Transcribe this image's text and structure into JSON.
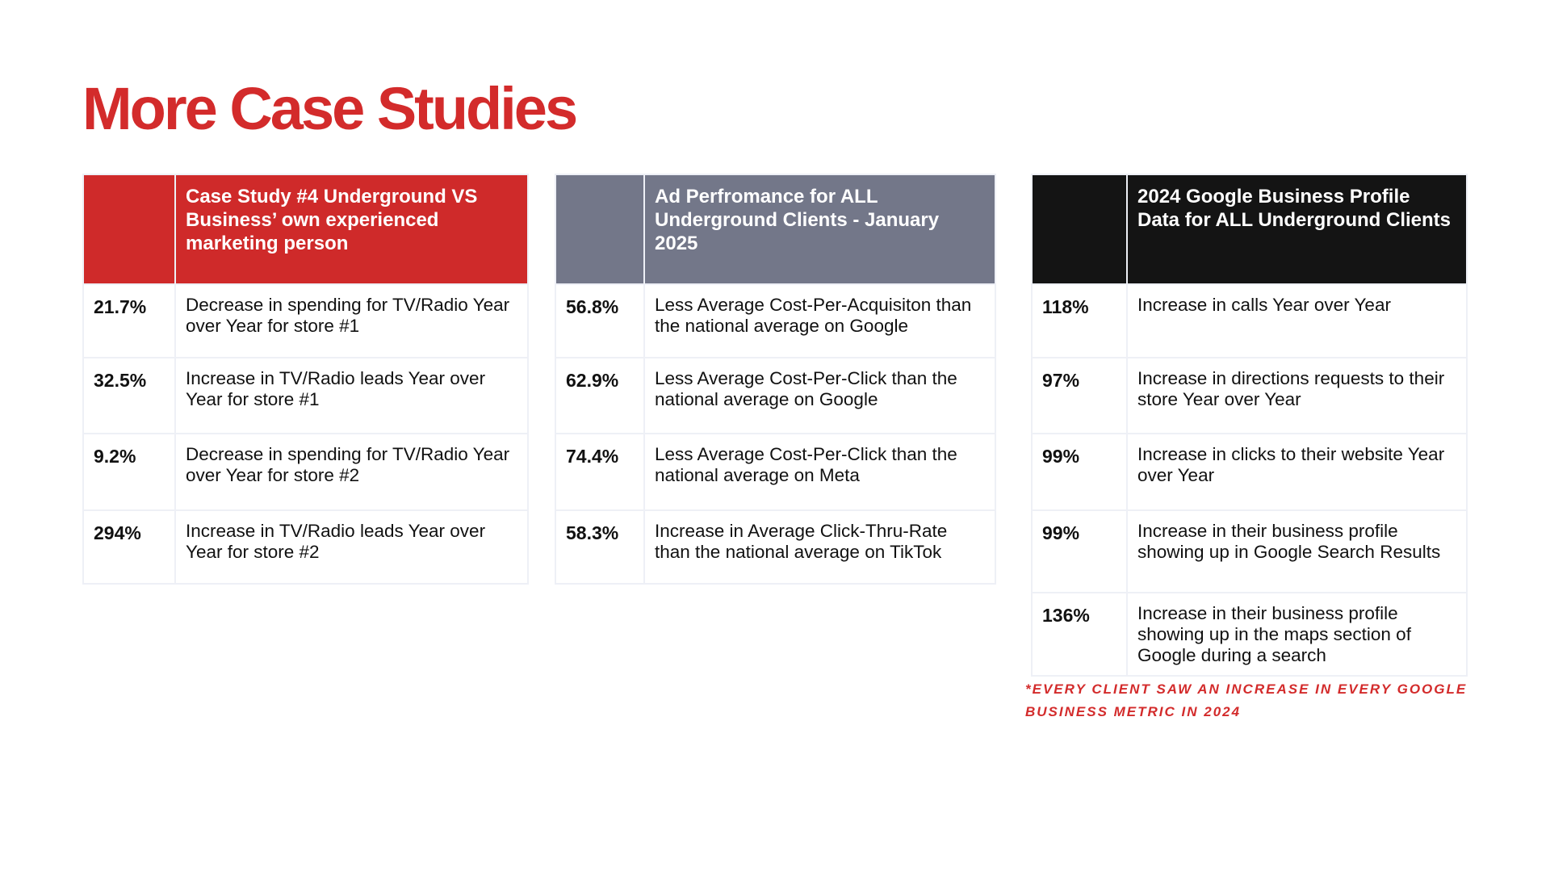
{
  "title": "More Case Studies",
  "tables": [
    {
      "header": "Case Study #4 Underground  VS Business’ own experienced marketing person",
      "row_heights": [
        91,
        94,
        95,
        91
      ],
      "rows": [
        {
          "value": "21.7%",
          "text": "Decrease in spending for TV/Radio Year over Year for store #1"
        },
        {
          "value": "32.5%",
          "text": "Increase in TV/Radio leads Year over Year for store #1"
        },
        {
          "value": "9.2%",
          "text": "Decrease in spending for TV/Radio Year over Year for store #2"
        },
        {
          "value": "294%",
          "text": "Increase in TV/Radio leads Year over Year for store #2"
        }
      ]
    },
    {
      "header": "Ad Perfromance for ALL Underground Clients - January 2025",
      "row_heights": [
        91,
        94,
        95,
        91
      ],
      "rows": [
        {
          "value": "56.8%",
          "text": "Less Average Cost-Per-Acquisiton than the national average on Google"
        },
        {
          "value": "62.9%",
          "text": "Less Average Cost-Per-Click than the national average on Google"
        },
        {
          "value": "74.4%",
          "text": "Less Average Cost-Per-Click than the national average on Meta"
        },
        {
          "value": "58.3%",
          "text": "Increase in Average Click-Thru-Rate than the national average on TikTok"
        }
      ]
    },
    {
      "header": "2024 Google Business Profile Data for ALL Underground Clients",
      "row_heights": [
        91,
        94,
        95,
        102,
        103
      ],
      "rows": [
        {
          "value": "118%",
          "text": "Increase in calls Year over Year"
        },
        {
          "value": "97%",
          "text": "Increase in directions requests to their store Year over Year"
        },
        {
          "value": "99%",
          "text": "Increase in clicks to their website Year over Year"
        },
        {
          "value": "99%",
          "text": "Increase in their business profile showing up in Google Search Results"
        },
        {
          "value": "136%",
          "text": "Increase in their business profile showing up in the maps section of Google during a search"
        }
      ]
    }
  ],
  "footnote": "*EVERY CLIENT SAW AN INCREASE IN EVERY GOOGLE BUSINESS METRIC IN 2024",
  "colors": {
    "accent": "#cf2a2a",
    "gray_header": "#737789",
    "black_header": "#141414"
  }
}
